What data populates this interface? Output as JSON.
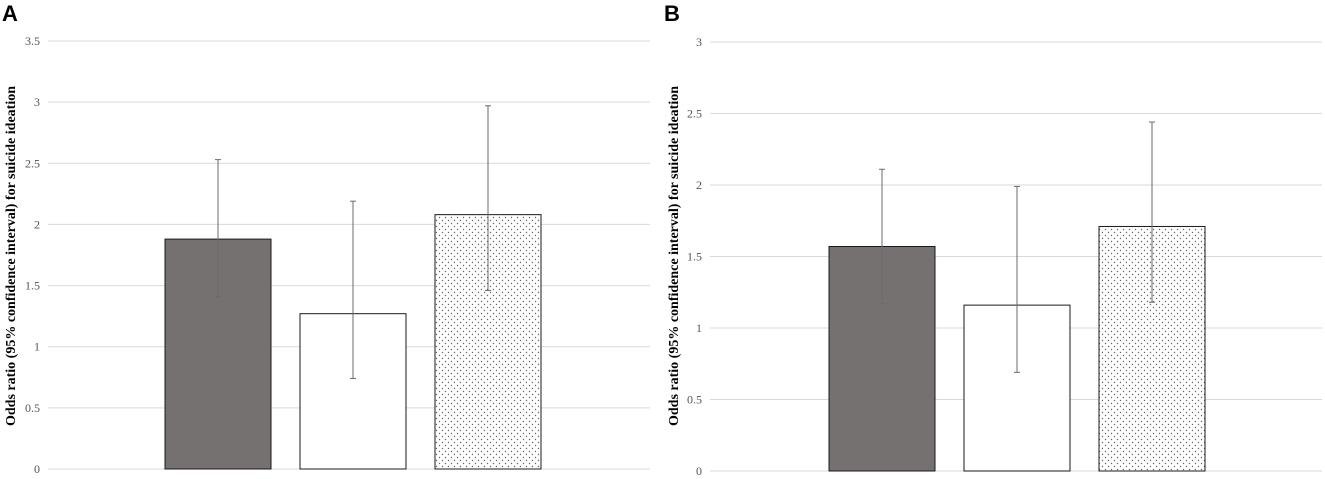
{
  "chart_data": [
    {
      "type": "bar",
      "panel_label": "A",
      "ylabel": "Odds ratio (95% confidence interval) for suicide ideation",
      "xlabel": "",
      "ylim": [
        0,
        3.5
      ],
      "yticks": [
        "0",
        "0.5",
        "1",
        "1.5",
        "2",
        "2.5",
        "3",
        "3.5"
      ],
      "grid": true,
      "legend": "none",
      "values": [
        1.88,
        1.27,
        2.08
      ],
      "error_low": [
        1.41,
        0.74,
        1.46
      ],
      "error_high": [
        2.53,
        2.19,
        2.97
      ],
      "styles": [
        "dark-gray-fill",
        "white-fill",
        "dotted-fill"
      ]
    },
    {
      "type": "bar",
      "panel_label": "B",
      "ylabel": "Odds ratio (95% confidence interval) for suicide ideation",
      "xlabel": "",
      "ylim": [
        0,
        3
      ],
      "yticks": [
        "0",
        "0.5",
        "1",
        "1.5",
        "2",
        "2.5",
        "3"
      ],
      "grid": true,
      "legend": "none",
      "values": [
        1.57,
        1.16,
        1.71
      ],
      "error_low": [
        1.17,
        0.69,
        1.18
      ],
      "error_high": [
        2.11,
        1.99,
        2.44
      ],
      "styles": [
        "dark-gray-fill",
        "white-fill",
        "dotted-fill"
      ]
    }
  ],
  "colors": {
    "dark_bar": "#757170",
    "bar_outline": "#1a1a1a",
    "grid": "#d9d9d9",
    "error_bar": "#6b6b6b",
    "dots": "#666666"
  }
}
